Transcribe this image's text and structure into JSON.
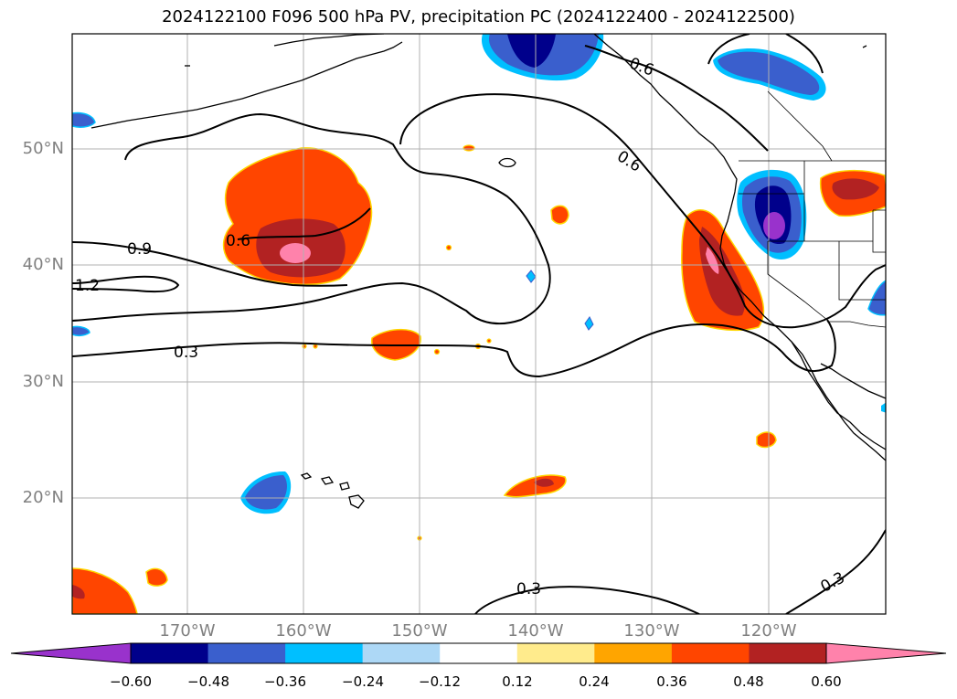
{
  "title": "2024122100 F096 500 hPa PV, precipitation PC (2024122400 - 2024122500)",
  "map": {
    "lat_labels": [
      "50°N",
      "40°N",
      "30°N",
      "20°N"
    ],
    "lon_labels": [
      "170°W",
      "160°W",
      "150°W",
      "140°W",
      "130°W",
      "120°W"
    ],
    "contour_labels": [
      "0.6",
      "0.6",
      "0.6",
      "0.9",
      "1.2",
      "0.3",
      "0.3",
      "0.3"
    ]
  },
  "colorbar": {
    "colors": [
      "#9932cc",
      "#00008b",
      "#3a5fcd",
      "#00bfff",
      "#add8f6",
      "#ffffff",
      "#ffeb8c",
      "#ffa500",
      "#ff4500",
      "#b22222",
      "#ff82ab"
    ],
    "ticks": [
      "−0.60",
      "−0.48",
      "−0.36",
      "−0.24",
      "−0.12",
      "0.12",
      "0.24",
      "0.36",
      "0.48",
      "0.60"
    ]
  }
}
